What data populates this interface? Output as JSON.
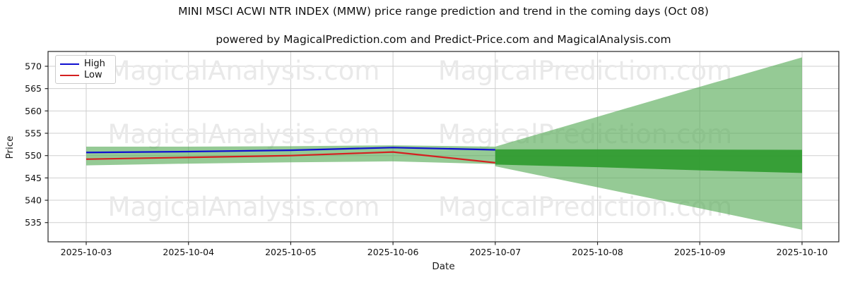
{
  "watermarks": {
    "texts": [
      "MagicalAnalysis.com",
      "MagicalPrediction.com"
    ],
    "color": "#e9e9e9"
  },
  "colors": {
    "high_line": "#0f0fd0",
    "low_line": "#d42020",
    "band_light": "#54a954",
    "band_dark": "#2f9b2f",
    "gridline": "#cfcfcf",
    "axis": "#262626"
  },
  "chart_data": {
    "type": "line",
    "title": "MINI MSCI ACWI NTR INDEX (MMW) price range prediction and trend in the coming days (Oct 08)",
    "subtitle": "powered by MagicalPrediction.com and Predict-Price.com and MagicalAnalysis.com",
    "xlabel": "Date",
    "ylabel": "Price",
    "x": [
      "2025-10-03",
      "2025-10-04",
      "2025-10-05",
      "2025-10-06",
      "2025-10-07",
      "2025-10-08",
      "2025-10-09",
      "2025-10-10"
    ],
    "yticks": [
      535,
      540,
      545,
      550,
      555,
      560,
      565,
      570
    ],
    "ylim": [
      530.7,
      573.3
    ],
    "grid": true,
    "legend_position": "upper left",
    "series": [
      {
        "name": "High",
        "kind": "line",
        "color_key": "high_line",
        "xi": [
          0,
          1,
          2,
          3,
          4
        ],
        "values": [
          550.7,
          550.9,
          551.2,
          551.8,
          551.3
        ]
      },
      {
        "name": "Low",
        "kind": "line",
        "color_key": "low_line",
        "xi": [
          0,
          1,
          2,
          3,
          4
        ],
        "values": [
          549.2,
          549.6,
          550.0,
          550.8,
          548.4
        ]
      },
      {
        "name": "historical-range-band",
        "kind": "band",
        "color_key": "band_light",
        "opacity": 0.62,
        "xi": [
          0,
          1,
          2,
          3,
          4
        ],
        "top": [
          552.0,
          552.0,
          552.1,
          552.3,
          552.0
        ],
        "bottom": [
          547.8,
          548.2,
          548.5,
          548.7,
          548.1
        ]
      },
      {
        "name": "forecast-uncertainty-fan",
        "kind": "band",
        "color_key": "band_light",
        "opacity": 0.62,
        "xi": [
          4,
          5,
          6,
          7
        ],
        "top": [
          552.0,
          558.7,
          565.4,
          572.0
        ],
        "bottom": [
          547.6,
          542.9,
          538.2,
          533.4
        ]
      },
      {
        "name": "forecast-core-band",
        "kind": "band",
        "color_key": "band_dark",
        "opacity": 0.92,
        "xi": [
          4,
          5,
          6,
          7
        ],
        "top": [
          551.4,
          551.4,
          551.35,
          551.3
        ],
        "bottom": [
          548.0,
          547.4,
          546.7,
          546.1
        ]
      }
    ]
  }
}
